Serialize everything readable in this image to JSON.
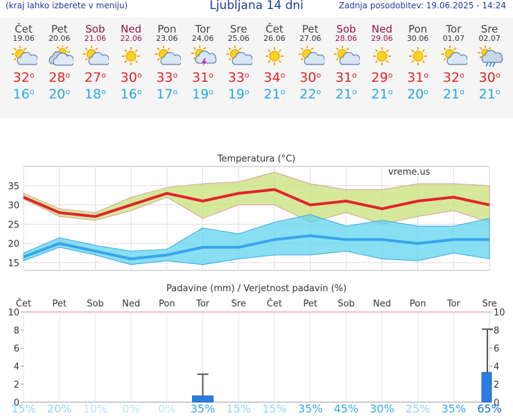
{
  "header": {
    "menu_hint": "(kraj lahko izberete v meniju)",
    "title": "Ljubljana 14 dni",
    "updated": "Zadnja posodobitev: 19.06.2025 - 14:24"
  },
  "colors": {
    "max": "#e0242c",
    "min": "#28a8e0",
    "weekend": "#a0104a",
    "rain_bar": "#2a7de0"
  },
  "days": [
    {
      "name": "Čet",
      "date": "19.06",
      "weekend": false,
      "icon": "sun-cloud-icon",
      "tmax": "32",
      "tmin": "16"
    },
    {
      "name": "Pet",
      "date": "20.06",
      "weekend": false,
      "icon": "cloudy-icon",
      "tmax": "28",
      "tmin": "20"
    },
    {
      "name": "Sob",
      "date": "21.06",
      "weekend": true,
      "icon": "sun-cloud-icon",
      "tmax": "27",
      "tmin": "18"
    },
    {
      "name": "Ned",
      "date": "22.06",
      "weekend": true,
      "icon": "sun-icon",
      "tmax": "30",
      "tmin": "16"
    },
    {
      "name": "Pon",
      "date": "23.06",
      "weekend": false,
      "icon": "sun-cloud-icon",
      "tmax": "33",
      "tmin": "17"
    },
    {
      "name": "Tor",
      "date": "24.06",
      "weekend": false,
      "icon": "thunderstorm-icon",
      "tmax": "31",
      "tmin": "19"
    },
    {
      "name": "Sre",
      "date": "25.06",
      "weekend": false,
      "icon": "sun-cloud-icon",
      "tmax": "33",
      "tmin": "19"
    },
    {
      "name": "Čet",
      "date": "26.06",
      "weekend": false,
      "icon": "sun-icon",
      "tmax": "34",
      "tmin": "21"
    },
    {
      "name": "Pet",
      "date": "27.06",
      "weekend": false,
      "icon": "sun-cloud-icon",
      "tmax": "30",
      "tmin": "22"
    },
    {
      "name": "Sob",
      "date": "28.06",
      "weekend": true,
      "icon": "sun-cloud-icon",
      "tmax": "31",
      "tmin": "21"
    },
    {
      "name": "Ned",
      "date": "29.06",
      "weekend": true,
      "icon": "sun-icon",
      "tmax": "29",
      "tmin": "21"
    },
    {
      "name": "Pon",
      "date": "30.06",
      "weekend": false,
      "icon": "sun-icon",
      "tmax": "31",
      "tmin": "20"
    },
    {
      "name": "Tor",
      "date": "01.07",
      "weekend": false,
      "icon": "sun-cloud-icon",
      "tmax": "32",
      "tmin": "21"
    },
    {
      "name": "Sre",
      "date": "02.07",
      "weekend": false,
      "icon": "rain-cloud-icon",
      "tmax": "30",
      "tmin": "21"
    }
  ],
  "chart_data": [
    {
      "type": "line",
      "title": "Temperatura (°C)",
      "watermark": "vreme.us",
      "categories": [
        "19.06",
        "20.06",
        "21.06",
        "22.06",
        "23.06",
        "24.06",
        "25.06",
        "26.06",
        "27.06",
        "28.06",
        "29.06",
        "30.06",
        "01.07",
        "02.07"
      ],
      "ylim": [
        13,
        40
      ],
      "yticks": [
        15,
        20,
        25,
        30,
        35
      ],
      "grid": true,
      "series": [
        {
          "values": [
            32,
            28,
            27,
            30,
            33,
            31,
            33,
            34,
            30,
            31,
            29,
            31,
            32,
            30
          ],
          "band_high": [
            33,
            29,
            28,
            32,
            34.5,
            35.5,
            36,
            38.5,
            35.5,
            34,
            34,
            35.5,
            35.5,
            35
          ],
          "band_low": [
            31.5,
            27,
            26,
            28.5,
            32,
            26.5,
            30,
            30,
            25.5,
            28,
            25,
            27,
            28.5,
            25.5
          ]
        },
        {
          "values": [
            16.5,
            20,
            18,
            16,
            17,
            19,
            19,
            21,
            22,
            21,
            21,
            20,
            21,
            21
          ],
          "band_high": [
            17.5,
            21.5,
            19.5,
            18,
            18.5,
            24,
            22.5,
            25.5,
            27.5,
            24.5,
            26,
            24.5,
            24.5,
            26.5
          ],
          "band_low": [
            15.5,
            19,
            17,
            14.5,
            15.5,
            14.5,
            16,
            17,
            17,
            18,
            16,
            15.5,
            17.5,
            16
          ]
        }
      ]
    },
    {
      "type": "bar",
      "title": "Padavine (mm) / Verjetnost padavin (%)",
      "categories": [
        "Čet",
        "Pet",
        "Sob",
        "Ned",
        "Pon",
        "Tor",
        "Sre",
        "Čet",
        "Pet",
        "Sob",
        "Ned",
        "Pon",
        "Tor",
        "Sre"
      ],
      "weekend": [
        false,
        false,
        true,
        true,
        false,
        false,
        false,
        false,
        false,
        true,
        true,
        false,
        false,
        false
      ],
      "ylim": [
        0,
        10
      ],
      "yticks": [
        "0",
        "2",
        "4",
        "6",
        "8",
        "10"
      ],
      "precip_mm": [
        0,
        0,
        0,
        0,
        0,
        0.7,
        0,
        0,
        0,
        0,
        0,
        0,
        0,
        3.3
      ],
      "precip_max_mm": [
        0,
        0,
        0,
        0,
        0,
        3.1,
        0,
        0,
        0,
        0,
        0,
        0,
        0,
        8.1
      ],
      "probability": [
        "15%",
        "20%",
        "10%",
        "0%",
        "0%",
        "35%",
        "15%",
        "15%",
        "35%",
        "45%",
        "30%",
        "25%",
        "35%",
        "65%"
      ],
      "probability_values": [
        15,
        20,
        10,
        0,
        0,
        35,
        15,
        15,
        35,
        45,
        30,
        25,
        35,
        65
      ]
    }
  ]
}
